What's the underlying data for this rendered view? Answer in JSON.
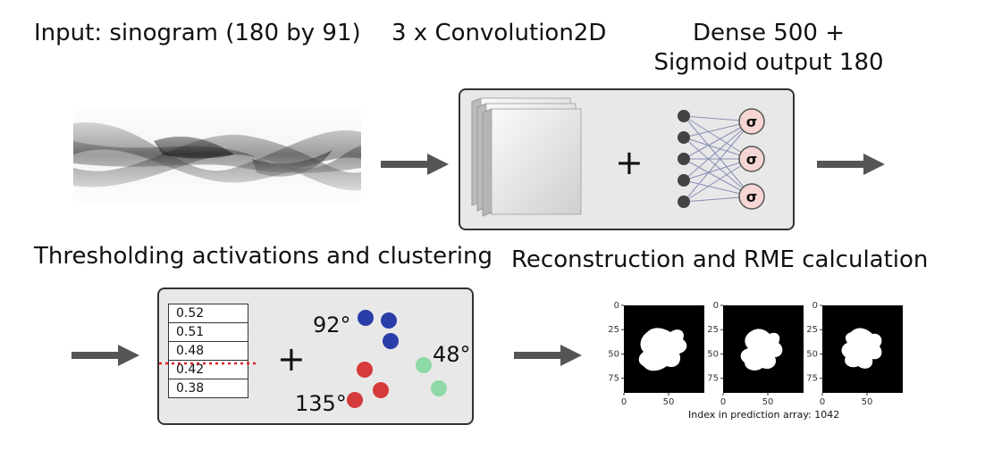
{
  "labels": {
    "input": "Input: sinogram (180 by 91)",
    "conv": "3 x Convolution2D",
    "dense_line1": "Dense 500 +",
    "dense_line2": "Sigmoid output 180",
    "threshold": "Thresholding activations and clustering",
    "reconstruction": "Reconstruction and RME calculation"
  },
  "network": {
    "plus": "+",
    "sigma": "σ"
  },
  "activations": [
    "0.52",
    "0.51",
    "0.48",
    "0.42",
    "0.38"
  ],
  "clusters": {
    "plus": "+",
    "angles": [
      "92°",
      "48°",
      "135°"
    ],
    "colors": {
      "blue": "#2a3da8",
      "green": "#8ed9a6",
      "red": "#d63a3a"
    }
  },
  "plots": {
    "y_ticks": [
      "0",
      "25",
      "50",
      "75"
    ],
    "x_ticks": [
      "0",
      "50"
    ],
    "caption": "Index in prediction array: 1042"
  }
}
